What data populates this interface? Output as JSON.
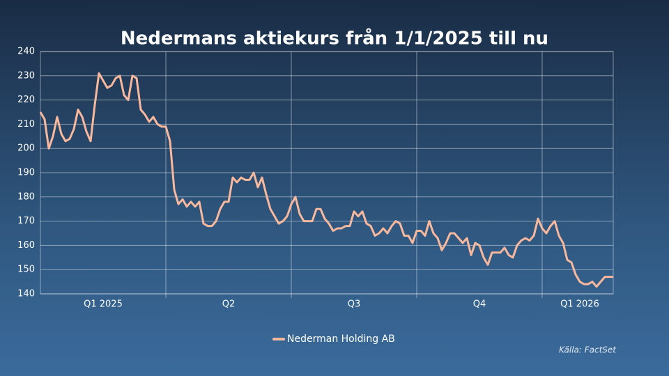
{
  "chart_data": {
    "type": "line",
    "title": "Nedermans aktiekurs från 1/1/2025 till nu",
    "source": "Källa: FactSet",
    "categories": [
      null,
      null,
      null,
      null,
      null,
      null,
      null,
      null,
      null,
      null,
      null,
      null,
      null,
      null,
      null,
      "Q1 2025",
      null,
      null,
      null,
      null,
      null,
      null,
      null,
      null,
      null,
      null,
      null,
      null,
      null,
      null,
      null,
      null,
      null,
      null,
      null,
      null,
      null,
      null,
      null,
      null,
      null,
      null,
      null,
      null,
      null,
      "Q2",
      null,
      null,
      null,
      null,
      null,
      null,
      null,
      null,
      null,
      null,
      null,
      null,
      null,
      null,
      null,
      null,
      null,
      null,
      null,
      null,
      null,
      null,
      null,
      null,
      null,
      null,
      null,
      null,
      null,
      "Q3",
      null,
      null,
      null,
      null,
      null,
      null,
      null,
      null,
      null,
      null,
      null,
      null,
      null,
      null,
      null,
      null,
      null,
      null,
      null,
      null,
      null,
      null,
      null,
      null,
      null,
      null,
      null,
      null,
      null,
      "Q4",
      null,
      null,
      null,
      null,
      null,
      null,
      null,
      null,
      null,
      null,
      null,
      null,
      null,
      null,
      null,
      null,
      null,
      null,
      null,
      null,
      null,
      null,
      null,
      "Q1 2026",
      null,
      null,
      null,
      null,
      null,
      null,
      null,
      null
    ],
    "series": [
      {
        "name": "Nederman Holding AB",
        "color": "#f7b89d",
        "values": [
          215,
          212,
          200,
          205,
          213,
          206,
          203,
          204,
          208,
          216,
          213,
          207,
          203,
          218,
          231,
          228,
          225,
          226,
          229,
          230,
          222,
          220,
          230,
          229,
          216,
          214,
          211,
          213,
          210,
          209,
          209,
          203,
          183,
          177,
          179,
          176,
          178,
          176,
          178,
          169,
          168,
          168,
          170,
          175,
          178,
          178,
          188,
          186,
          188,
          187,
          187,
          190,
          184,
          188,
          181,
          175,
          172,
          169,
          170,
          172,
          177,
          180,
          173,
          170,
          170,
          170,
          175,
          175,
          171,
          169,
          166,
          167,
          167,
          168,
          168,
          174,
          172,
          174,
          169,
          168,
          164,
          165,
          167,
          165,
          168,
          170,
          169,
          164,
          164,
          161,
          166,
          166,
          164,
          170,
          165,
          163,
          158,
          161,
          165,
          165,
          163,
          161,
          163,
          156,
          161,
          160,
          155,
          152,
          157,
          157,
          157,
          159,
          156,
          155,
          160,
          162,
          163,
          162,
          164,
          171,
          167,
          165,
          168,
          170,
          164,
          161,
          154,
          153,
          148,
          145,
          144,
          144,
          145,
          143,
          145,
          147,
          147,
          147
        ]
      }
    ],
    "ylim": [
      140,
      240
    ],
    "yticks": [
      140,
      150,
      160,
      170,
      180,
      190,
      200,
      210,
      220,
      230,
      240
    ],
    "grid": true
  }
}
